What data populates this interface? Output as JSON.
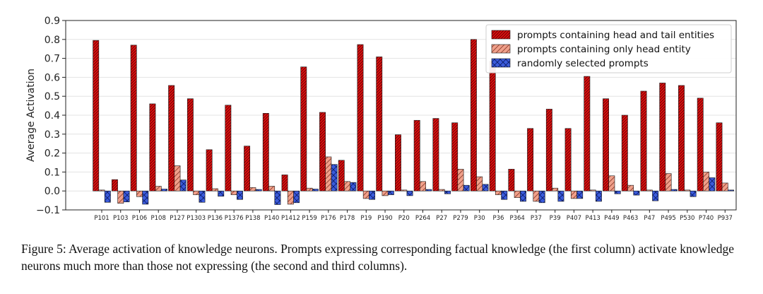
{
  "chart_data": {
    "type": "bar",
    "ylabel": "Average Activation",
    "xlabel": "",
    "ylim": [
      -0.1,
      0.9
    ],
    "yticks": [
      -0.1,
      0.0,
      0.1,
      0.2,
      0.3,
      0.4,
      0.5,
      0.6,
      0.7,
      0.8,
      0.9
    ],
    "ytick_labels": [
      "−0.1",
      "0.0",
      "0.1",
      "0.2",
      "0.3",
      "0.4",
      "0.5",
      "0.6",
      "0.7",
      "0.8",
      "0.9"
    ],
    "legend_position": "top-right",
    "categories": [
      "P101",
      "P103",
      "P106",
      "P108",
      "P127",
      "P1303",
      "P136",
      "P1376",
      "P138",
      "P140",
      "P1412",
      "P159",
      "P176",
      "P178",
      "P19",
      "P190",
      "P20",
      "P264",
      "P27",
      "P279",
      "P30",
      "P36",
      "P364",
      "P37",
      "P39",
      "P407",
      "P413",
      "P449",
      "P463",
      "P47",
      "P495",
      "P530",
      "P740",
      "P937"
    ],
    "series": [
      {
        "name": "prompts containing head and tail entities",
        "color": "#dd1111",
        "hatch": "dense-diagonal",
        "values": [
          0.795,
          0.06,
          0.77,
          0.46,
          0.557,
          0.487,
          0.218,
          0.453,
          0.237,
          0.41,
          0.085,
          0.655,
          0.415,
          0.162,
          0.773,
          0.708,
          0.297,
          0.373,
          0.383,
          0.36,
          0.8,
          0.685,
          0.115,
          0.33,
          0.432,
          0.33,
          0.605,
          0.487,
          0.4,
          0.527,
          0.57,
          0.557,
          0.49,
          0.36
        ]
      },
      {
        "name": "prompts containing only head entity",
        "color": "#f0a08a",
        "hatch": "diagonal",
        "values": [
          0.005,
          -0.065,
          -0.03,
          0.025,
          0.133,
          -0.02,
          0.012,
          -0.02,
          0.018,
          0.025,
          -0.07,
          0.015,
          0.18,
          0.05,
          -0.04,
          -0.025,
          0.005,
          0.05,
          0.008,
          0.115,
          0.075,
          -0.02,
          -0.035,
          -0.055,
          0.015,
          -0.04,
          0.005,
          0.08,
          0.03,
          0.005,
          0.092,
          0.005,
          0.1,
          0.042
        ]
      },
      {
        "name": "randomly selected prompts",
        "color": "#3b5bdb",
        "hatch": "cross",
        "values": [
          -0.06,
          -0.058,
          -0.07,
          0.01,
          0.058,
          -0.06,
          -0.028,
          -0.045,
          0.008,
          -0.072,
          -0.062,
          0.01,
          0.14,
          0.045,
          -0.045,
          -0.02,
          -0.025,
          0.008,
          -0.015,
          0.03,
          0.035,
          -0.045,
          -0.055,
          -0.062,
          -0.055,
          -0.04,
          -0.055,
          -0.015,
          -0.022,
          -0.052,
          0.008,
          -0.03,
          0.07,
          0.005
        ]
      }
    ]
  },
  "caption": "Figure 5:  Average activation of knowledge neurons.  Prompts expressing corresponding factual knowledge (the first column) activate knowledge neurons much more than those not expressing (the second and third columns)."
}
